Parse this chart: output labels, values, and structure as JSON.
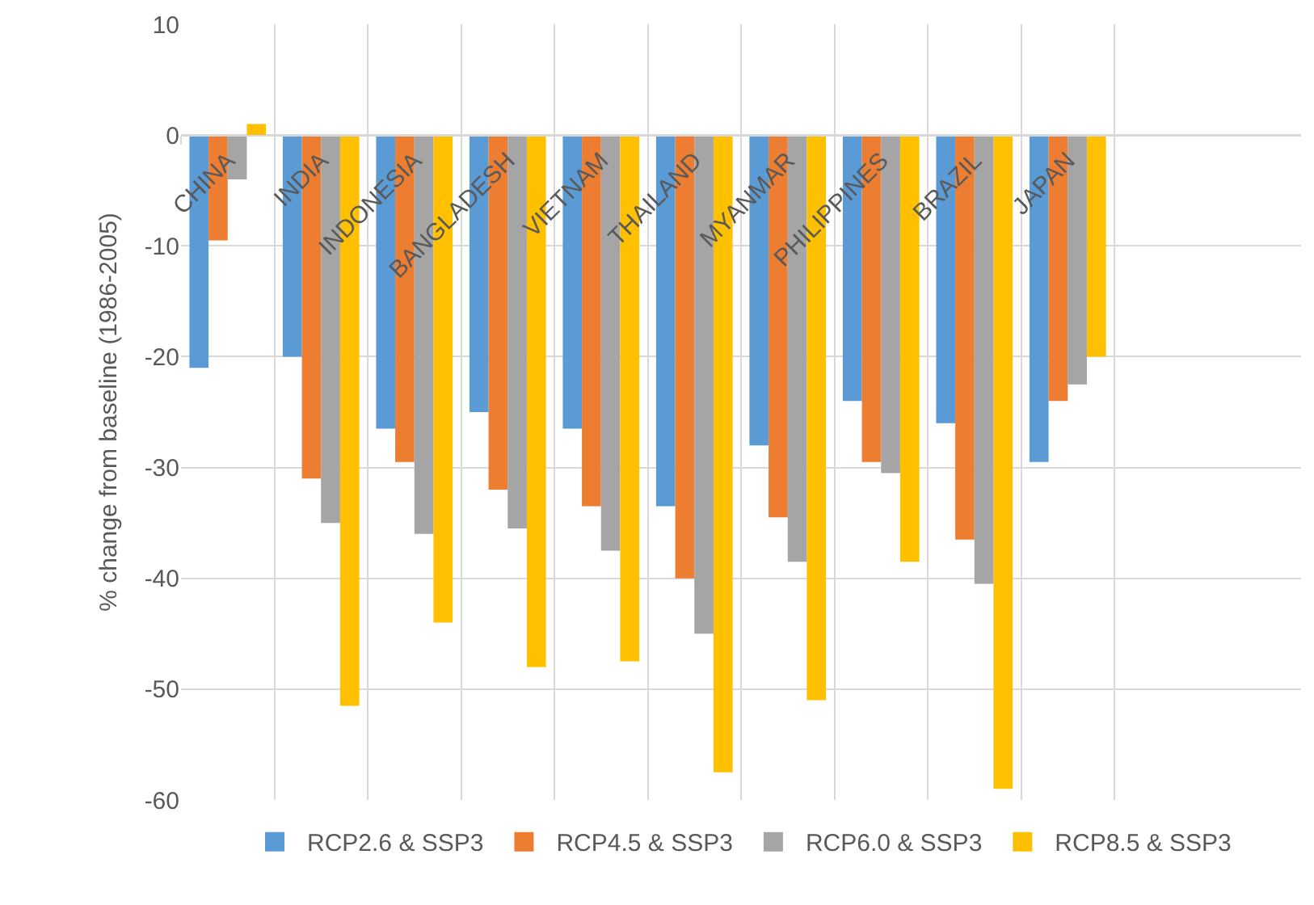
{
  "chart_data": {
    "type": "bar",
    "ylabel": "% change from baseline (1986-2005)",
    "categories": [
      "CHINA",
      "INDIA",
      "INDONESIA",
      "BANGLADESH",
      "VIETNAM",
      "THAILAND",
      "MYANMAR",
      "PHILIPPINES",
      "BRAZIL",
      "JAPAN",
      null,
      null
    ],
    "series": [
      {
        "name": "RCP2.6 & SSP3",
        "color": "#5b9bd5",
        "values": [
          -21,
          -20,
          -26.5,
          -25,
          -26.5,
          -33.5,
          -28,
          -24,
          -26,
          -29.5,
          null,
          null
        ]
      },
      {
        "name": "RCP4.5 & SSP3",
        "color": "#ed7d31",
        "values": [
          -9.5,
          -31,
          -29.5,
          -32,
          -33.5,
          -40,
          -34.5,
          -29.5,
          -36.5,
          -24,
          null,
          null
        ]
      },
      {
        "name": "RCP6.0 & SSP3",
        "color": "#a5a5a5",
        "values": [
          -4,
          -35,
          -36,
          -35.5,
          -37.5,
          -45,
          -38.5,
          -30.5,
          -40.5,
          -22.5,
          null,
          null
        ]
      },
      {
        "name": "RCP8.5 & SSP3",
        "color": "#ffc000",
        "values": [
          1,
          -51.5,
          -44,
          -48,
          -47.5,
          -57.5,
          -51,
          -38.5,
          -59,
          -20,
          null,
          null
        ]
      }
    ],
    "ylim": [
      -60,
      10
    ],
    "yticks": [
      -60,
      -50,
      -40,
      -30,
      -20,
      -10,
      0,
      10
    ],
    "grid": true,
    "legend": "bottom"
  }
}
